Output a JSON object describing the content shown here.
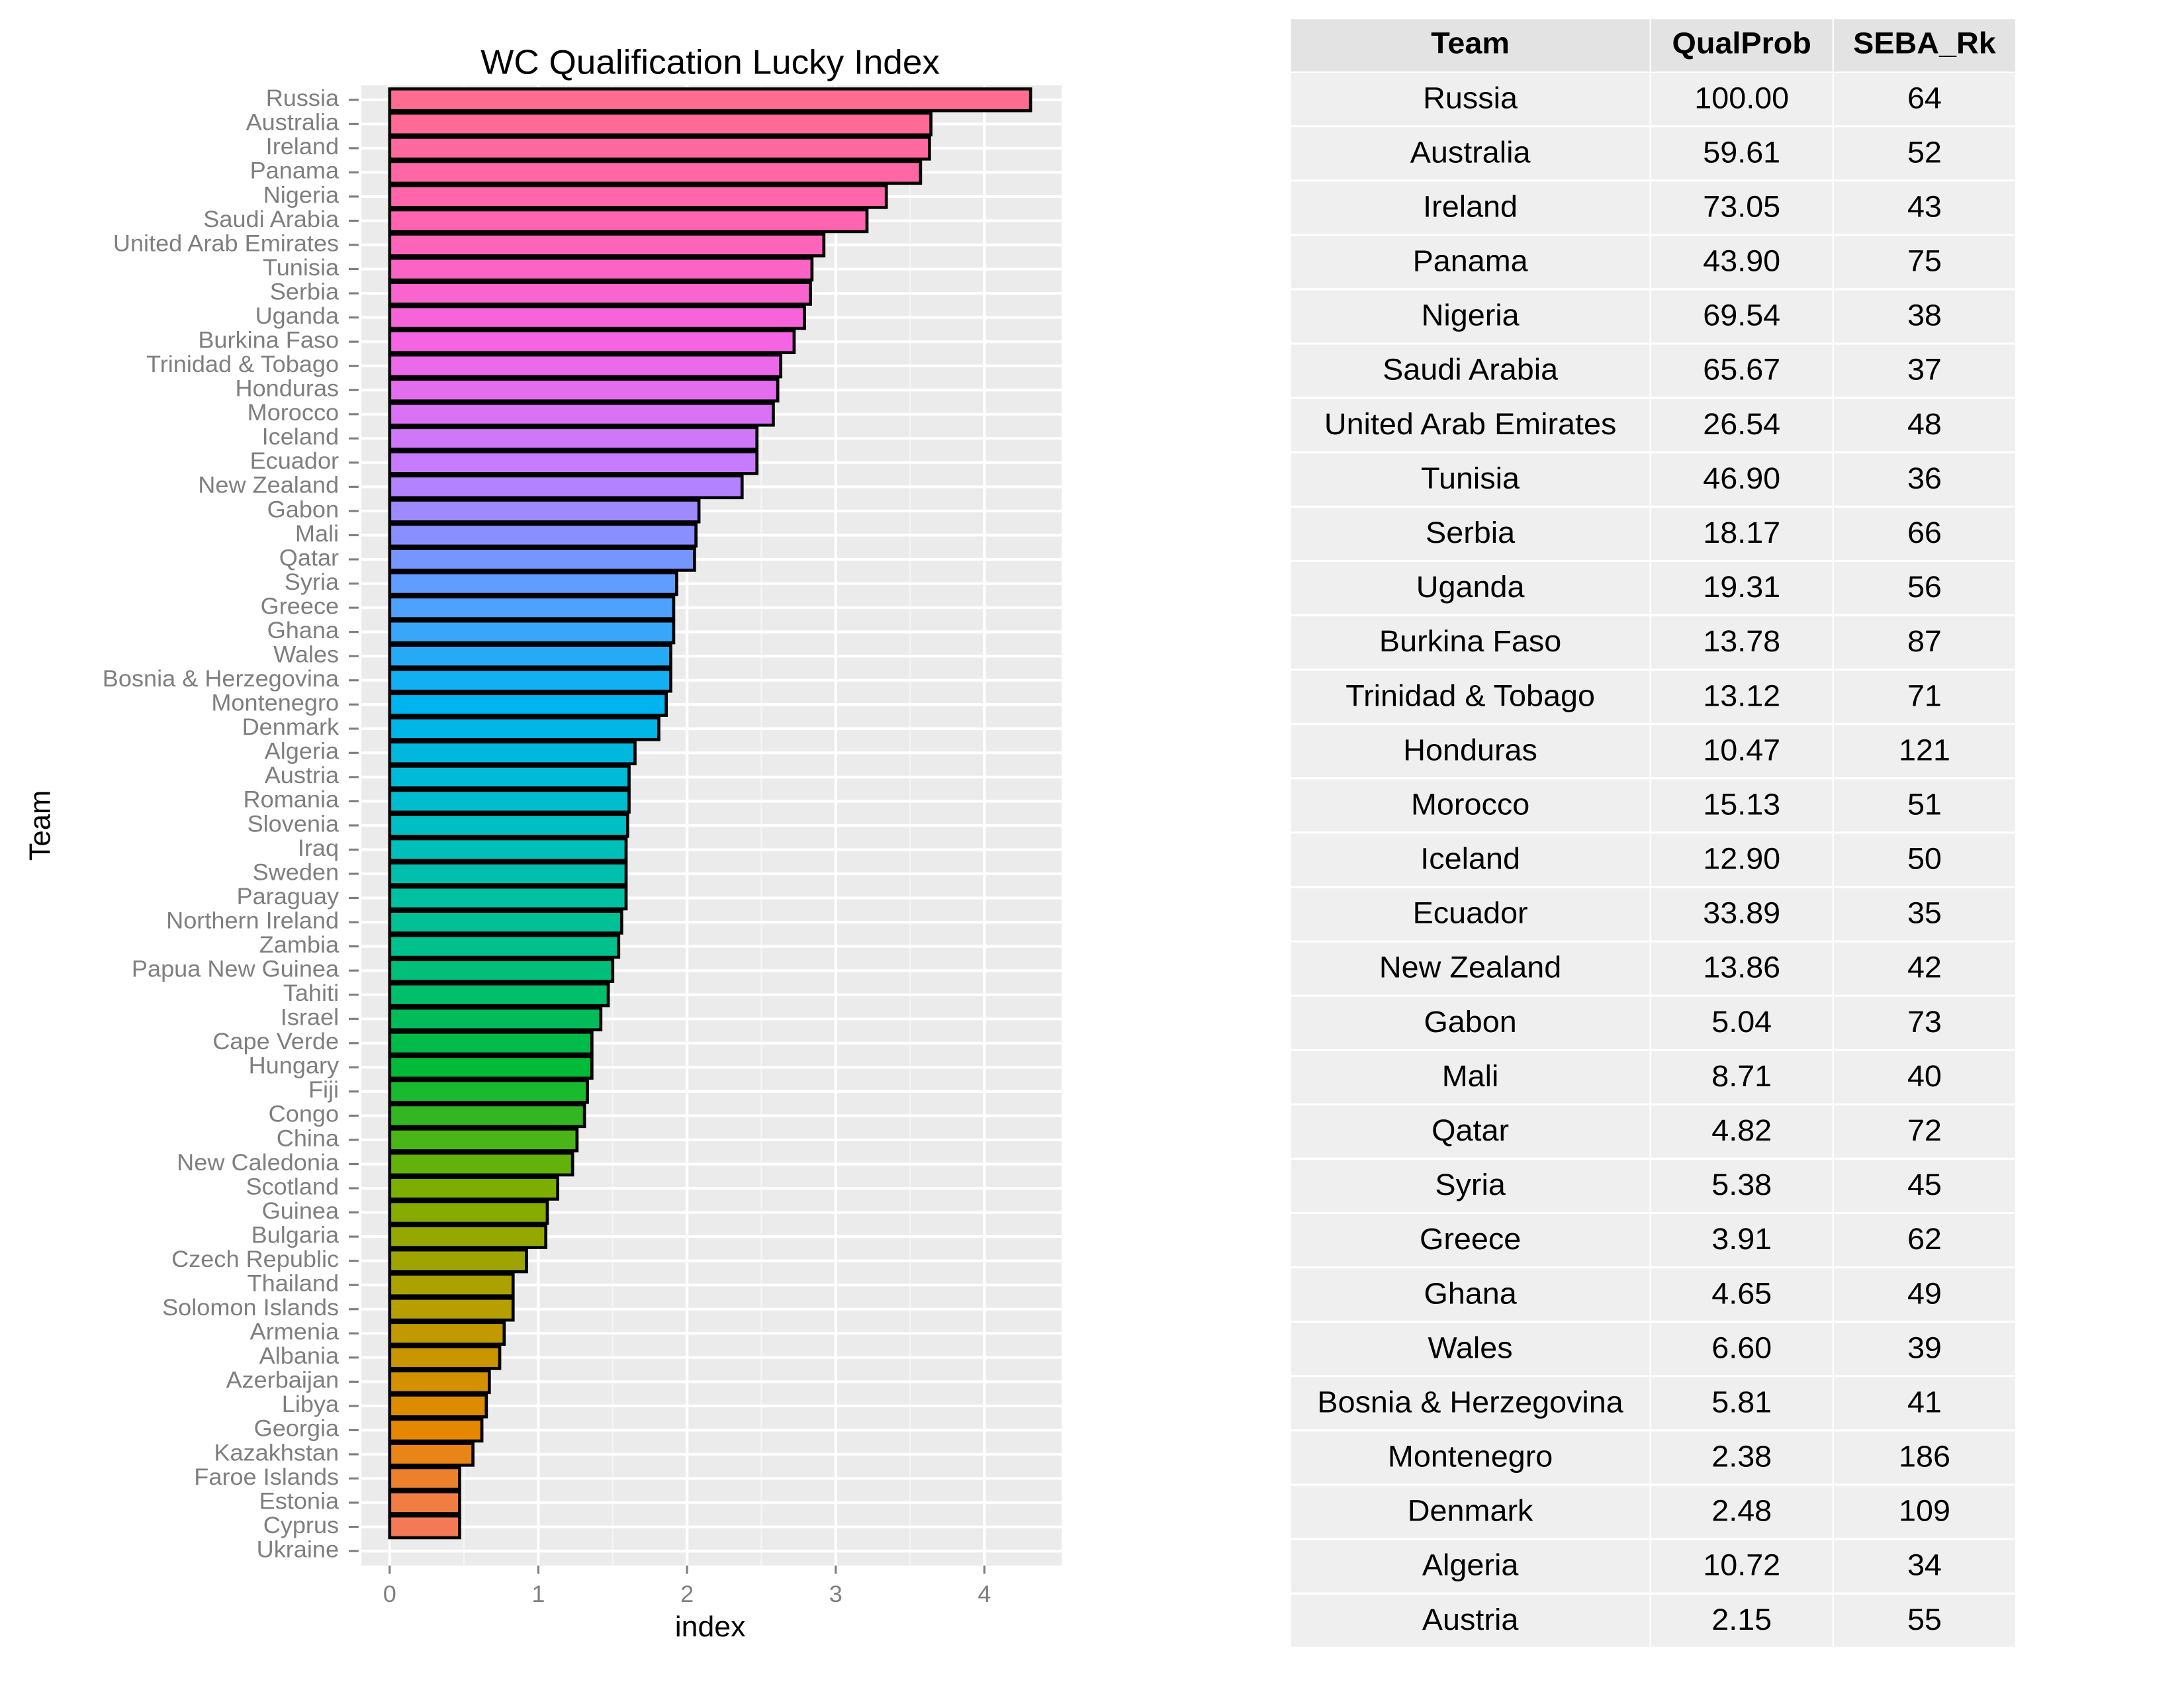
{
  "chart_data": {
    "type": "barh",
    "title": "WC Qualification Lucky Index",
    "x_label": "index",
    "y_label": "Team",
    "categories": [
      "Russia",
      "Australia",
      "Ireland",
      "Panama",
      "Nigeria",
      "Saudi Arabia",
      "United Arab Emirates",
      "Tunisia",
      "Serbia",
      "Uganda",
      "Burkina Faso",
      "Trinidad & Tobago",
      "Honduras",
      "Morocco",
      "Iceland",
      "Ecuador",
      "New Zealand",
      "Gabon",
      "Mali",
      "Qatar",
      "Syria",
      "Greece",
      "Ghana",
      "Wales",
      "Bosnia & Herzegovina",
      "Montenegro",
      "Denmark",
      "Algeria",
      "Austria",
      "Romania",
      "Slovenia",
      "Iraq",
      "Sweden",
      "Paraguay",
      "Northern Ireland",
      "Zambia",
      "Papua New Guinea",
      "Tahiti",
      "Israel",
      "Cape Verde",
      "Hungary",
      "Fiji",
      "Congo",
      "China",
      "New Caledonia",
      "Scotland",
      "Guinea",
      "Bulgaria",
      "Czech Republic",
      "Thailand",
      "Solomon Islands",
      "Armenia",
      "Albania",
      "Azerbaijan",
      "Libya",
      "Georgia",
      "Kazakhstan",
      "Faroe Islands",
      "Estonia",
      "Cyprus",
      "Ukraine"
    ],
    "values": [
      4.31,
      3.64,
      3.63,
      3.57,
      3.34,
      3.21,
      2.92,
      2.84,
      2.83,
      2.79,
      2.72,
      2.63,
      2.61,
      2.58,
      2.47,
      2.47,
      2.37,
      2.08,
      2.06,
      2.05,
      1.93,
      1.91,
      1.91,
      1.89,
      1.89,
      1.86,
      1.81,
      1.65,
      1.61,
      1.61,
      1.6,
      1.59,
      1.59,
      1.59,
      1.56,
      1.54,
      1.5,
      1.47,
      1.42,
      1.36,
      1.36,
      1.33,
      1.31,
      1.26,
      1.23,
      1.13,
      1.06,
      1.05,
      0.92,
      0.83,
      0.83,
      0.77,
      0.74,
      0.67,
      0.65,
      0.62,
      0.56,
      0.47,
      0.47,
      0.47,
      0
    ],
    "colors": [
      "#FF6C91",
      "#FF6A97",
      "#FF699D",
      "#FF67A4",
      "#FF66AA",
      "#FF64B0",
      "#FD64BA",
      "#FB64C4",
      "#F964CF",
      "#F764D9",
      "#F564E3",
      "#EC69E9",
      "#E26EEE",
      "#D972F4",
      "#D077F9",
      "#C77CFF",
      "#B382FF",
      "#9E89FF",
      "#8A8FFF",
      "#7596FF",
      "#619CFF",
      "#4EA1FC",
      "#3AA6F9",
      "#27AAF6",
      "#13AFF3",
      "#00B4F0",
      "#00B6E7",
      "#00B8DE",
      "#00BBD6",
      "#00BDCD",
      "#00BFC4",
      "#00BFB9",
      "#00C0AD",
      "#00C0A2",
      "#00C096",
      "#00C08B",
      "#00BF7A",
      "#00BE6A",
      "#00BC59",
      "#00BB49",
      "#00BA38",
      "#19BA2D",
      "#32B722",
      "#4AB516",
      "#63B20B",
      "#7CAE00",
      "#88AB00",
      "#94A800",
      "#9FA500",
      "#ABA200",
      "#B79F00",
      "#C09A00",
      "#C99500",
      "#D39100",
      "#DC8C00",
      "#E58700",
      "#E98416",
      "#ED802C",
      "#F07D41",
      "#F47957",
      "#F8766D"
    ],
    "xlim": [
      -0.19,
      4.52
    ],
    "xticks": [
      0,
      1,
      2,
      3,
      4
    ],
    "grid": true
  },
  "table": {
    "header": [
      "Team",
      "QualProb",
      "SEBA_Rk"
    ],
    "rows": [
      [
        "Russia",
        "100.00",
        "64"
      ],
      [
        "Australia",
        "59.61",
        "52"
      ],
      [
        "Ireland",
        "73.05",
        "43"
      ],
      [
        "Panama",
        "43.90",
        "75"
      ],
      [
        "Nigeria",
        "69.54",
        "38"
      ],
      [
        "Saudi Arabia",
        "65.67",
        "37"
      ],
      [
        "United Arab Emirates",
        "26.54",
        "48"
      ],
      [
        "Tunisia",
        "46.90",
        "36"
      ],
      [
        "Serbia",
        "18.17",
        "66"
      ],
      [
        "Uganda",
        "19.31",
        "56"
      ],
      [
        "Burkina Faso",
        "13.78",
        "87"
      ],
      [
        "Trinidad & Tobago",
        "13.12",
        "71"
      ],
      [
        "Honduras",
        "10.47",
        "121"
      ],
      [
        "Morocco",
        "15.13",
        "51"
      ],
      [
        "Iceland",
        "12.90",
        "50"
      ],
      [
        "Ecuador",
        "33.89",
        "35"
      ],
      [
        "New Zealand",
        "13.86",
        "42"
      ],
      [
        "Gabon",
        "5.04",
        "73"
      ],
      [
        "Mali",
        "8.71",
        "40"
      ],
      [
        "Qatar",
        "4.82",
        "72"
      ],
      [
        "Syria",
        "5.38",
        "45"
      ],
      [
        "Greece",
        "3.91",
        "62"
      ],
      [
        "Ghana",
        "4.65",
        "49"
      ],
      [
        "Wales",
        "6.60",
        "39"
      ],
      [
        "Bosnia & Herzegovina",
        "5.81",
        "41"
      ],
      [
        "Montenegro",
        "2.38",
        "186"
      ],
      [
        "Denmark",
        "2.48",
        "109"
      ],
      [
        "Algeria",
        "10.72",
        "34"
      ],
      [
        "Austria",
        "2.15",
        "55"
      ]
    ]
  }
}
